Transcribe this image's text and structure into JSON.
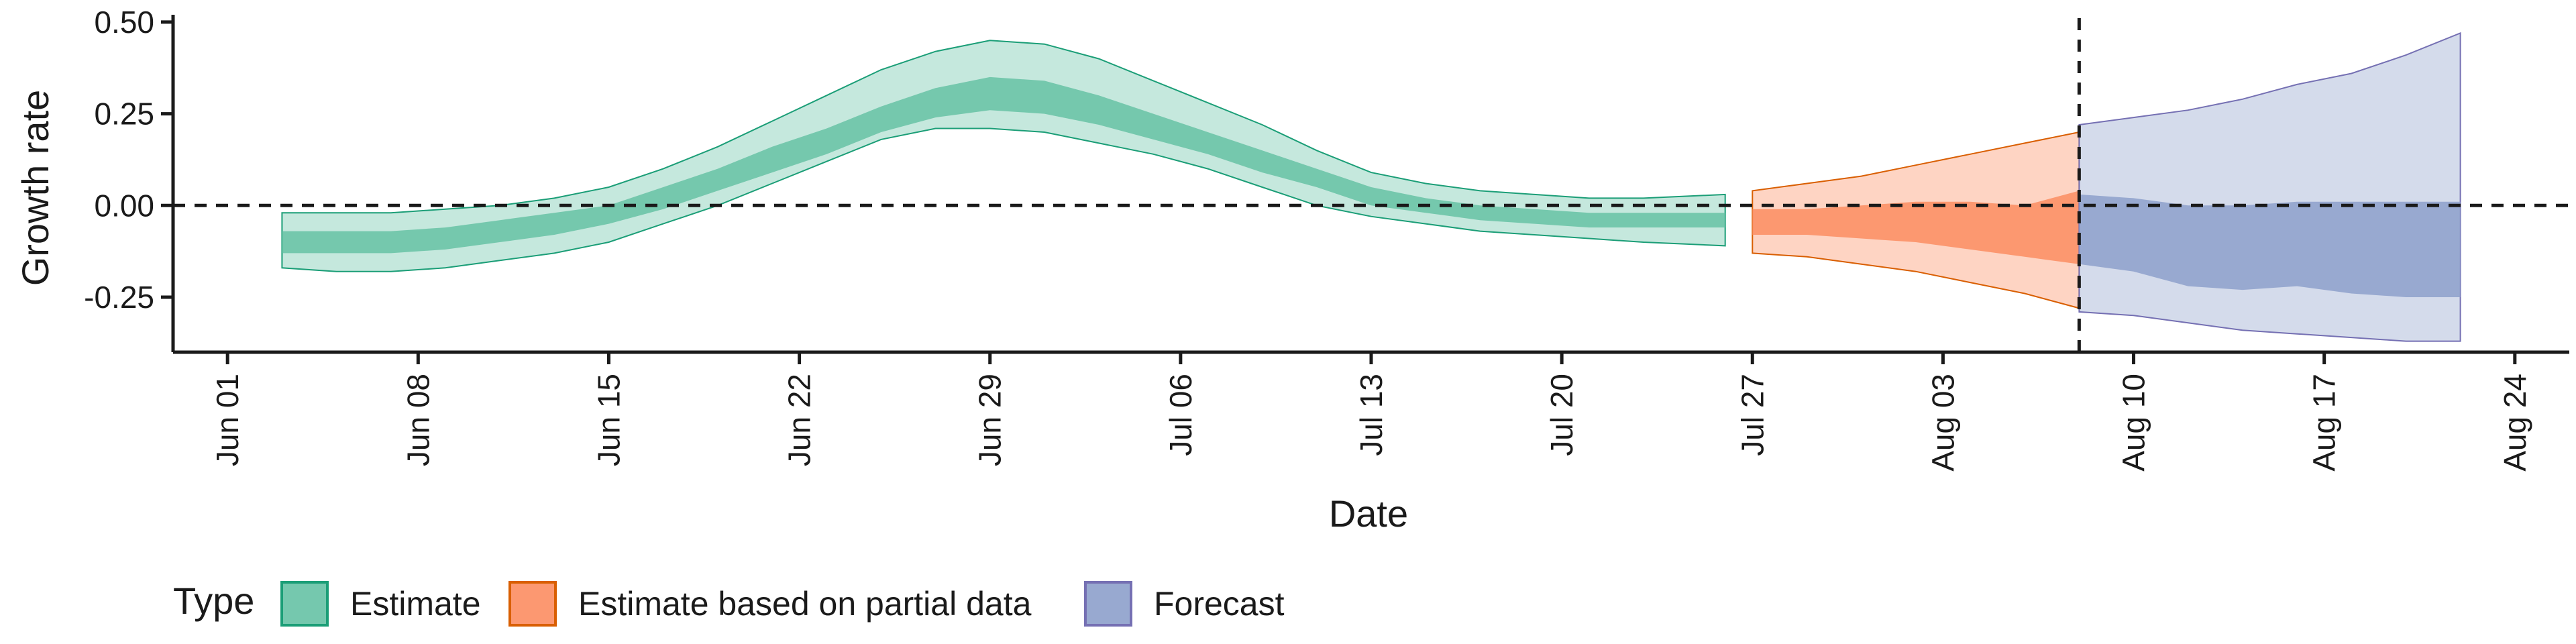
{
  "chart_data": {
    "type": "area",
    "xlabel": "Date",
    "ylabel": "Growth rate",
    "x_ticks": [
      "2020-06-01",
      "2020-06-08",
      "2020-06-15",
      "2020-06-22",
      "2020-06-29",
      "2020-07-06",
      "2020-07-13",
      "2020-07-20",
      "2020-07-27",
      "2020-08-03",
      "2020-08-10",
      "2020-08-17",
      "2020-08-24"
    ],
    "x_tick_labels": [
      "Jun 01",
      "Jun 08",
      "Jun 15",
      "Jun 22",
      "Jun 29",
      "Jul 06",
      "Jul 13",
      "Jul 20",
      "Jul 27",
      "Aug 03",
      "Aug 10",
      "Aug 17",
      "Aug 24"
    ],
    "y_ticks": [
      -0.25,
      0.0,
      0.25,
      0.5
    ],
    "y_tick_labels": [
      "-0.25",
      "0.00",
      "0.25",
      "0.50"
    ],
    "xlim": [
      "2020-05-30",
      "2020-08-26"
    ],
    "ylim": [
      -0.4,
      0.52
    ],
    "hline": 0.0,
    "vline": "2020-08-08",
    "grid": false,
    "legend": {
      "title": "Type",
      "position": "bottom",
      "entries": [
        {
          "label": "Estimate",
          "color": "#1b9e77"
        },
        {
          "label": "Estimate based on partial data",
          "color": "#d95f02"
        },
        {
          "label": "Forecast",
          "color": "#7570b3"
        }
      ]
    },
    "series": [
      {
        "name": "Estimate",
        "fill_color": "#66c2a5",
        "line_color": "#1b9e77",
        "x": [
          "2020-06-03",
          "2020-06-05",
          "2020-06-07",
          "2020-06-09",
          "2020-06-11",
          "2020-06-13",
          "2020-06-15",
          "2020-06-17",
          "2020-06-19",
          "2020-06-21",
          "2020-06-23",
          "2020-06-25",
          "2020-06-27",
          "2020-06-29",
          "2020-07-01",
          "2020-07-03",
          "2020-07-05",
          "2020-07-07",
          "2020-07-09",
          "2020-07-11",
          "2020-07-13",
          "2020-07-15",
          "2020-07-17",
          "2020-07-19",
          "2020-07-21",
          "2020-07-23",
          "2020-07-26"
        ],
        "lower_90": [
          -0.17,
          -0.18,
          -0.18,
          -0.17,
          -0.15,
          -0.13,
          -0.1,
          -0.05,
          0.0,
          0.06,
          0.12,
          0.18,
          0.21,
          0.21,
          0.2,
          0.17,
          0.14,
          0.1,
          0.05,
          0.0,
          -0.03,
          -0.05,
          -0.07,
          -0.08,
          -0.09,
          -0.1,
          -0.11
        ],
        "lower_50": [
          -0.13,
          -0.13,
          -0.13,
          -0.12,
          -0.1,
          -0.08,
          -0.05,
          -0.01,
          0.04,
          0.09,
          0.14,
          0.2,
          0.24,
          0.26,
          0.25,
          0.22,
          0.18,
          0.14,
          0.09,
          0.05,
          0.0,
          -0.02,
          -0.04,
          -0.05,
          -0.06,
          -0.06,
          -0.06
        ],
        "upper_50": [
          -0.07,
          -0.07,
          -0.07,
          -0.06,
          -0.04,
          -0.02,
          0.0,
          0.05,
          0.1,
          0.16,
          0.21,
          0.27,
          0.32,
          0.35,
          0.34,
          0.3,
          0.25,
          0.2,
          0.15,
          0.1,
          0.05,
          0.02,
          0.0,
          -0.01,
          -0.02,
          -0.02,
          -0.02
        ],
        "upper_90": [
          -0.02,
          -0.02,
          -0.02,
          -0.01,
          0.0,
          0.02,
          0.05,
          0.1,
          0.16,
          0.23,
          0.3,
          0.37,
          0.42,
          0.45,
          0.44,
          0.4,
          0.34,
          0.28,
          0.22,
          0.15,
          0.09,
          0.06,
          0.04,
          0.03,
          0.02,
          0.02,
          0.03
        ]
      },
      {
        "name": "Estimate based on partial data",
        "fill_color": "#fc8d62",
        "line_color": "#d95f02",
        "x": [
          "2020-07-27",
          "2020-07-29",
          "2020-07-31",
          "2020-08-02",
          "2020-08-04",
          "2020-08-06",
          "2020-08-08"
        ],
        "lower_90": [
          -0.13,
          -0.14,
          -0.16,
          -0.18,
          -0.21,
          -0.24,
          -0.28
        ],
        "lower_50": [
          -0.08,
          -0.08,
          -0.09,
          -0.1,
          -0.12,
          -0.14,
          -0.16
        ],
        "upper_50": [
          -0.01,
          -0.01,
          0.0,
          0.01,
          0.01,
          0.0,
          0.04
        ],
        "upper_90": [
          0.04,
          0.06,
          0.08,
          0.11,
          0.14,
          0.17,
          0.2
        ]
      },
      {
        "name": "Forecast",
        "fill_color": "#8da0cb",
        "line_color": "#7570b3",
        "x": [
          "2020-08-08",
          "2020-08-10",
          "2020-08-12",
          "2020-08-14",
          "2020-08-16",
          "2020-08-18",
          "2020-08-20",
          "2020-08-22"
        ],
        "lower_90": [
          -0.29,
          -0.3,
          -0.32,
          -0.34,
          -0.35,
          -0.36,
          -0.37,
          -0.37
        ],
        "lower_50": [
          -0.16,
          -0.18,
          -0.22,
          -0.23,
          -0.22,
          -0.24,
          -0.25,
          -0.25
        ],
        "upper_50": [
          0.03,
          0.02,
          0.0,
          0.0,
          0.01,
          0.01,
          0.01,
          0.01
        ],
        "upper_90": [
          0.22,
          0.24,
          0.26,
          0.29,
          0.33,
          0.36,
          0.41,
          0.47
        ]
      }
    ]
  }
}
